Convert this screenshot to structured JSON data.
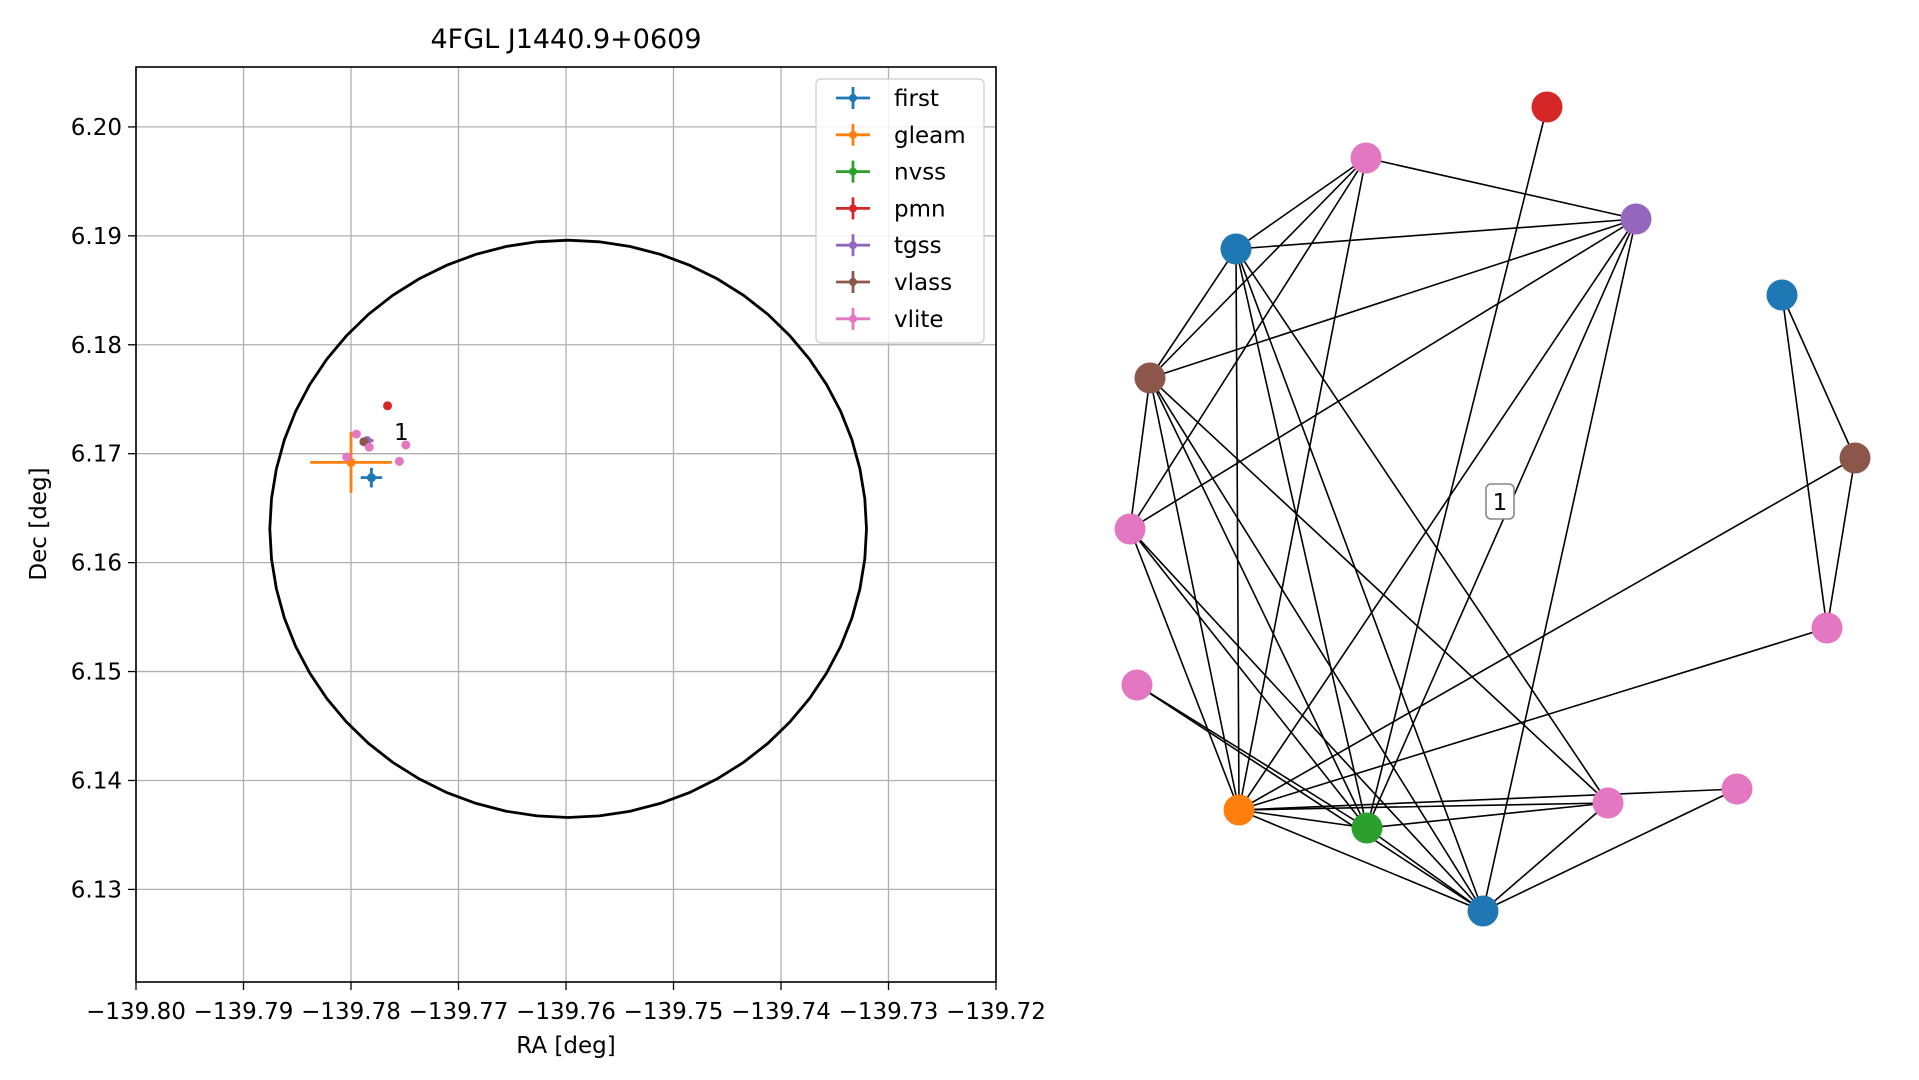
{
  "chart_data": [
    {
      "type": "scatter",
      "title": "4FGL J1440.9+0609",
      "xlabel": "RA [deg]",
      "ylabel": "Dec [deg]",
      "xlim": [
        -139.8,
        -139.72
      ],
      "ylim": [
        6.1215,
        6.2055
      ],
      "xticks": [
        -139.8,
        -139.79,
        -139.78,
        -139.77,
        -139.76,
        -139.75,
        -139.74,
        -139.73,
        -139.72
      ],
      "xtick_labels": [
        "−139.80",
        "−139.79",
        "−139.78",
        "−139.77",
        "−139.76",
        "−139.75",
        "−139.74",
        "−139.73",
        "−139.72"
      ],
      "yticks": [
        6.13,
        6.14,
        6.15,
        6.16,
        6.17,
        6.18,
        6.19,
        6.2
      ],
      "ytick_labels": [
        "6.13",
        "6.14",
        "6.15",
        "6.16",
        "6.17",
        "6.18",
        "6.19",
        "6.20"
      ],
      "grid": true,
      "legend_position": "top-right",
      "ellipse": {
        "center_ra": -139.7598,
        "center_dec": 6.1631,
        "semi_major_ra": 0.02775,
        "semi_minor_dec": 0.0265,
        "color": "#000000"
      },
      "annotation": {
        "text": "1",
        "ra": -139.776,
        "dec": 6.172
      },
      "series": [
        {
          "name": "first",
          "color": "#1f77b4",
          "points": [
            {
              "ra": -139.7781,
              "dec": 6.1678,
              "ra_err": 0.001,
              "dec_err": 0.0009
            }
          ]
        },
        {
          "name": "gleam",
          "color": "#ff7f0e",
          "points": [
            {
              "ra": -139.78,
              "dec": 6.1692,
              "ra_err": 0.0038,
              "dec_err": 0.0028
            }
          ]
        },
        {
          "name": "nvss",
          "color": "#2ca02c",
          "points": []
        },
        {
          "name": "pmn",
          "color": "#d62728",
          "points": [
            {
              "ra": -139.7766,
              "dec": 6.1744,
              "ra_err": 0,
              "dec_err": 0
            }
          ]
        },
        {
          "name": "tgss",
          "color": "#9467bd",
          "points": [
            {
              "ra": -139.7785,
              "dec": 6.1712,
              "ra_err": 0.0006,
              "dec_err": 0.0004
            }
          ]
        },
        {
          "name": "vlass",
          "color": "#8c564b",
          "points": [
            {
              "ra": -139.7788,
              "dec": 6.1711,
              "ra_err": 0.0002,
              "dec_err": 0.0002
            }
          ]
        },
        {
          "name": "vlite",
          "color": "#e377c2",
          "points": [
            {
              "ra": -139.7795,
              "dec": 6.1718,
              "ra_err": 0.0002,
              "dec_err": 0.0002
            },
            {
              "ra": -139.7783,
              "dec": 6.1706,
              "ra_err": 0.0002,
              "dec_err": 0.0002
            },
            {
              "ra": -139.7804,
              "dec": 6.1697,
              "ra_err": 0.0002,
              "dec_err": 0.0002
            },
            {
              "ra": -139.7755,
              "dec": 6.1693,
              "ra_err": 0.0002,
              "dec_err": 0.0002
            },
            {
              "ra": -139.7749,
              "dec": 6.1708,
              "ra_err": 0.0002,
              "dec_err": 0.0002
            }
          ]
        }
      ]
    },
    {
      "type": "network",
      "center_label": "1",
      "nodes": [
        {
          "id": "n0",
          "catalog": "pmn",
          "color": "#d62728"
        },
        {
          "id": "n1",
          "catalog": "vlite",
          "color": "#e377c2"
        },
        {
          "id": "n2",
          "catalog": "tgss",
          "color": "#9467bd"
        },
        {
          "id": "n3",
          "catalog": "first",
          "color": "#1f77b4"
        },
        {
          "id": "n4",
          "catalog": "first",
          "color": "#1f77b4"
        },
        {
          "id": "n5",
          "catalog": "vlass",
          "color": "#8c564b"
        },
        {
          "id": "n6",
          "catalog": "vlass",
          "color": "#8c564b"
        },
        {
          "id": "n7",
          "catalog": "vlite",
          "color": "#e377c2"
        },
        {
          "id": "n8",
          "catalog": "vlite",
          "color": "#e377c2"
        },
        {
          "id": "n9",
          "catalog": "vlite",
          "color": "#e377c2"
        },
        {
          "id": "n10",
          "catalog": "gleam",
          "color": "#ff7f0e"
        },
        {
          "id": "n11",
          "catalog": "nvss",
          "color": "#2ca02c"
        },
        {
          "id": "n12",
          "catalog": "vlite",
          "color": "#e377c2"
        },
        {
          "id": "n13",
          "catalog": "vlite",
          "color": "#e377c2"
        },
        {
          "id": "n14",
          "catalog": "first",
          "color": "#1f77b4"
        }
      ],
      "edges": [
        [
          "n0",
          "n11"
        ],
        [
          "n1",
          "n2"
        ],
        [
          "n1",
          "n3"
        ],
        [
          "n1",
          "n6"
        ],
        [
          "n1",
          "n7"
        ],
        [
          "n1",
          "n10"
        ],
        [
          "n2",
          "n3"
        ],
        [
          "n2",
          "n6"
        ],
        [
          "n2",
          "n7"
        ],
        [
          "n2",
          "n10"
        ],
        [
          "n2",
          "n11"
        ],
        [
          "n2",
          "n14"
        ],
        [
          "n3",
          "n6"
        ],
        [
          "n3",
          "n10"
        ],
        [
          "n3",
          "n11"
        ],
        [
          "n3",
          "n12"
        ],
        [
          "n3",
          "n14"
        ],
        [
          "n4",
          "n5"
        ],
        [
          "n4",
          "n8"
        ],
        [
          "n5",
          "n8"
        ],
        [
          "n5",
          "n10"
        ],
        [
          "n6",
          "n7"
        ],
        [
          "n6",
          "n10"
        ],
        [
          "n6",
          "n11"
        ],
        [
          "n6",
          "n12"
        ],
        [
          "n6",
          "n14"
        ],
        [
          "n7",
          "n10"
        ],
        [
          "n7",
          "n11"
        ],
        [
          "n7",
          "n14"
        ],
        [
          "n9",
          "n11"
        ],
        [
          "n9",
          "n14"
        ],
        [
          "n8",
          "n10"
        ],
        [
          "n10",
          "n11"
        ],
        [
          "n10",
          "n12"
        ],
        [
          "n10",
          "n13"
        ],
        [
          "n10",
          "n14"
        ],
        [
          "n11",
          "n12"
        ],
        [
          "n11",
          "n14"
        ],
        [
          "n12",
          "n14"
        ],
        [
          "n13",
          "n14"
        ]
      ]
    }
  ]
}
